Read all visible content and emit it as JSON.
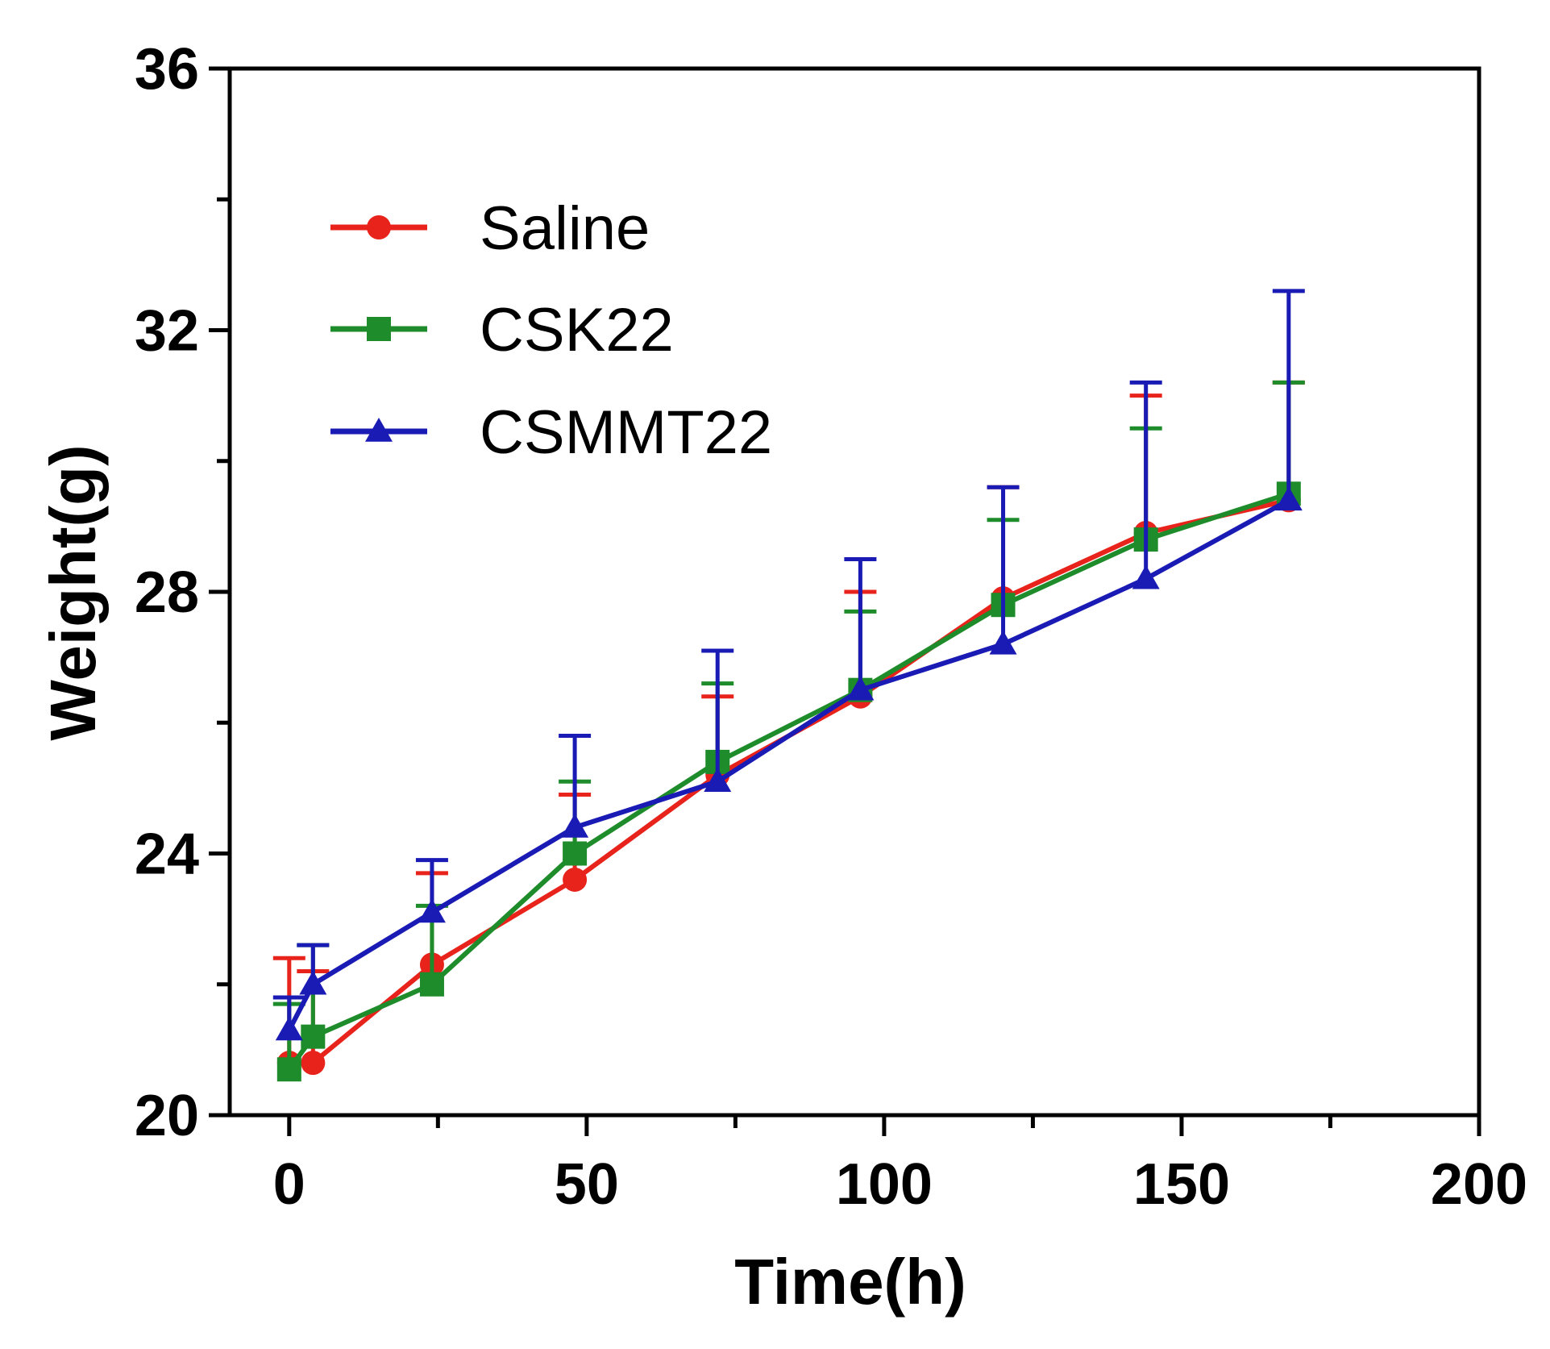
{
  "chart_data": {
    "type": "line",
    "title": "",
    "xlabel": "Time(h)",
    "ylabel": "Weight(g)",
    "xlim": [
      -10,
      200
    ],
    "ylim": [
      20,
      36
    ],
    "xticks": [
      0,
      50,
      100,
      150,
      200
    ],
    "yticks": [
      20,
      24,
      28,
      32,
      36
    ],
    "grid": false,
    "legend_position": "top-left",
    "series": [
      {
        "name": "Saline",
        "color": "#e8231b",
        "marker": "circle",
        "x": [
          0,
          4,
          24,
          48,
          72,
          96,
          120,
          144,
          168
        ],
        "y": [
          20.8,
          20.8,
          22.3,
          23.6,
          25.2,
          26.4,
          27.9,
          28.9,
          29.4
        ],
        "err": [
          1.6,
          1.4,
          1.4,
          1.3,
          1.2,
          1.6,
          1.7,
          2.1,
          1.8
        ]
      },
      {
        "name": "CSK22",
        "color": "#1e8c2a",
        "marker": "square",
        "x": [
          0,
          4,
          24,
          48,
          72,
          96,
          120,
          144,
          168
        ],
        "y": [
          20.7,
          21.2,
          22.0,
          24.0,
          25.4,
          26.5,
          27.8,
          28.8,
          29.5
        ],
        "err": [
          1.0,
          1.4,
          1.2,
          1.1,
          1.2,
          1.2,
          1.3,
          1.7,
          1.7
        ]
      },
      {
        "name": "CSMMT22",
        "color": "#1a1ab5",
        "marker": "triangle",
        "x": [
          0,
          4,
          24,
          48,
          72,
          96,
          120,
          144,
          168
        ],
        "y": [
          21.3,
          22.0,
          23.1,
          24.4,
          25.1,
          26.5,
          27.2,
          28.2,
          29.4
        ],
        "err": [
          0.5,
          0.6,
          0.8,
          1.4,
          2.0,
          2.0,
          2.4,
          3.0,
          3.2
        ]
      }
    ]
  }
}
